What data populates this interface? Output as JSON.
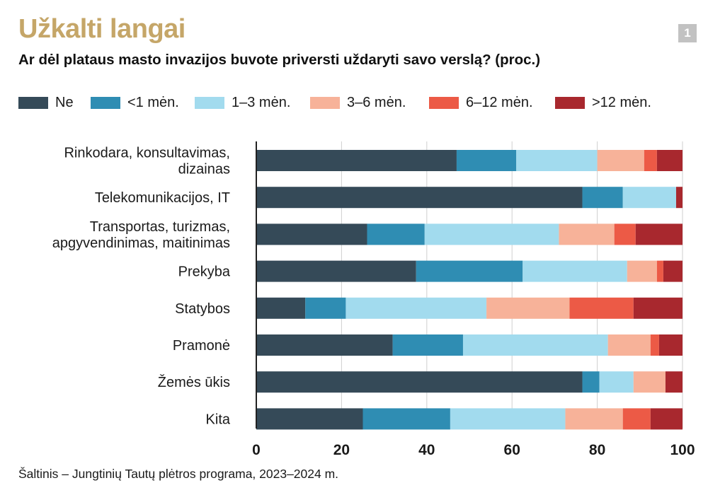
{
  "header": {
    "title": "Užkalti langai",
    "badge": "1",
    "subtitle": "Ar dėl plataus masto invazijos buvote priversti uždaryti savo verslą? (proc.)"
  },
  "source": "Šaltinis – Jungtinių Tautų plėtros programa, 2023–2024 m.",
  "colors": {
    "Ne": "#354a58",
    "lt1": "#2f8db3",
    "m1_3": "#a2dbee",
    "m3_6": "#f7b299",
    "m6_12": "#ec5a46",
    "gt12": "#a8282e",
    "gridline": "#cfcfcf"
  },
  "chart_data": {
    "type": "bar",
    "orientation": "horizontal",
    "stacked": true,
    "title": "Ar dėl plataus masto invazijos buvote priversti uždaryti savo verslą? (proc.)",
    "xlabel": "",
    "ylabel": "",
    "xlim": [
      0,
      100
    ],
    "xticks": [
      "0",
      "20",
      "40",
      "60",
      "80",
      "100"
    ],
    "grid": true,
    "legend_position": "top",
    "categories": [
      [
        "Rinkodara, konsultavimas,",
        "dizainas"
      ],
      [
        "Telekomunikacijos, IT"
      ],
      [
        "Transportas, turizmas,",
        "apgyvendinimas, maitinimas"
      ],
      [
        "Prekyba"
      ],
      [
        "Statybos"
      ],
      [
        "Pramonė"
      ],
      [
        "Žemės ūkis"
      ],
      [
        "Kita"
      ]
    ],
    "series": [
      {
        "name": "Ne",
        "color_key": "Ne",
        "values": [
          47,
          76.5,
          26,
          37.5,
          11.5,
          32,
          76.5,
          25
        ]
      },
      {
        "name": "<1 mėn.",
        "color_key": "lt1",
        "values": [
          14,
          9.5,
          13.5,
          25,
          9.5,
          16.5,
          4,
          20.5
        ]
      },
      {
        "name": "1–3 mėn.",
        "color_key": "m1_3",
        "values": [
          19,
          12.5,
          31.5,
          24.5,
          33,
          34,
          8,
          27
        ]
      },
      {
        "name": "3–6 mėn.",
        "color_key": "m3_6",
        "values": [
          11,
          0,
          13,
          7,
          19.5,
          10,
          7.5,
          13.5
        ]
      },
      {
        "name": "6–12 mėn.",
        "color_key": "m6_12",
        "values": [
          3,
          0,
          5,
          1.5,
          15,
          2,
          0,
          6.5
        ]
      },
      {
        "name": ">12 mėn.",
        "color_key": "gt12",
        "values": [
          6,
          1.5,
          11,
          4.5,
          11.5,
          5.5,
          4,
          7.5
        ]
      }
    ]
  }
}
